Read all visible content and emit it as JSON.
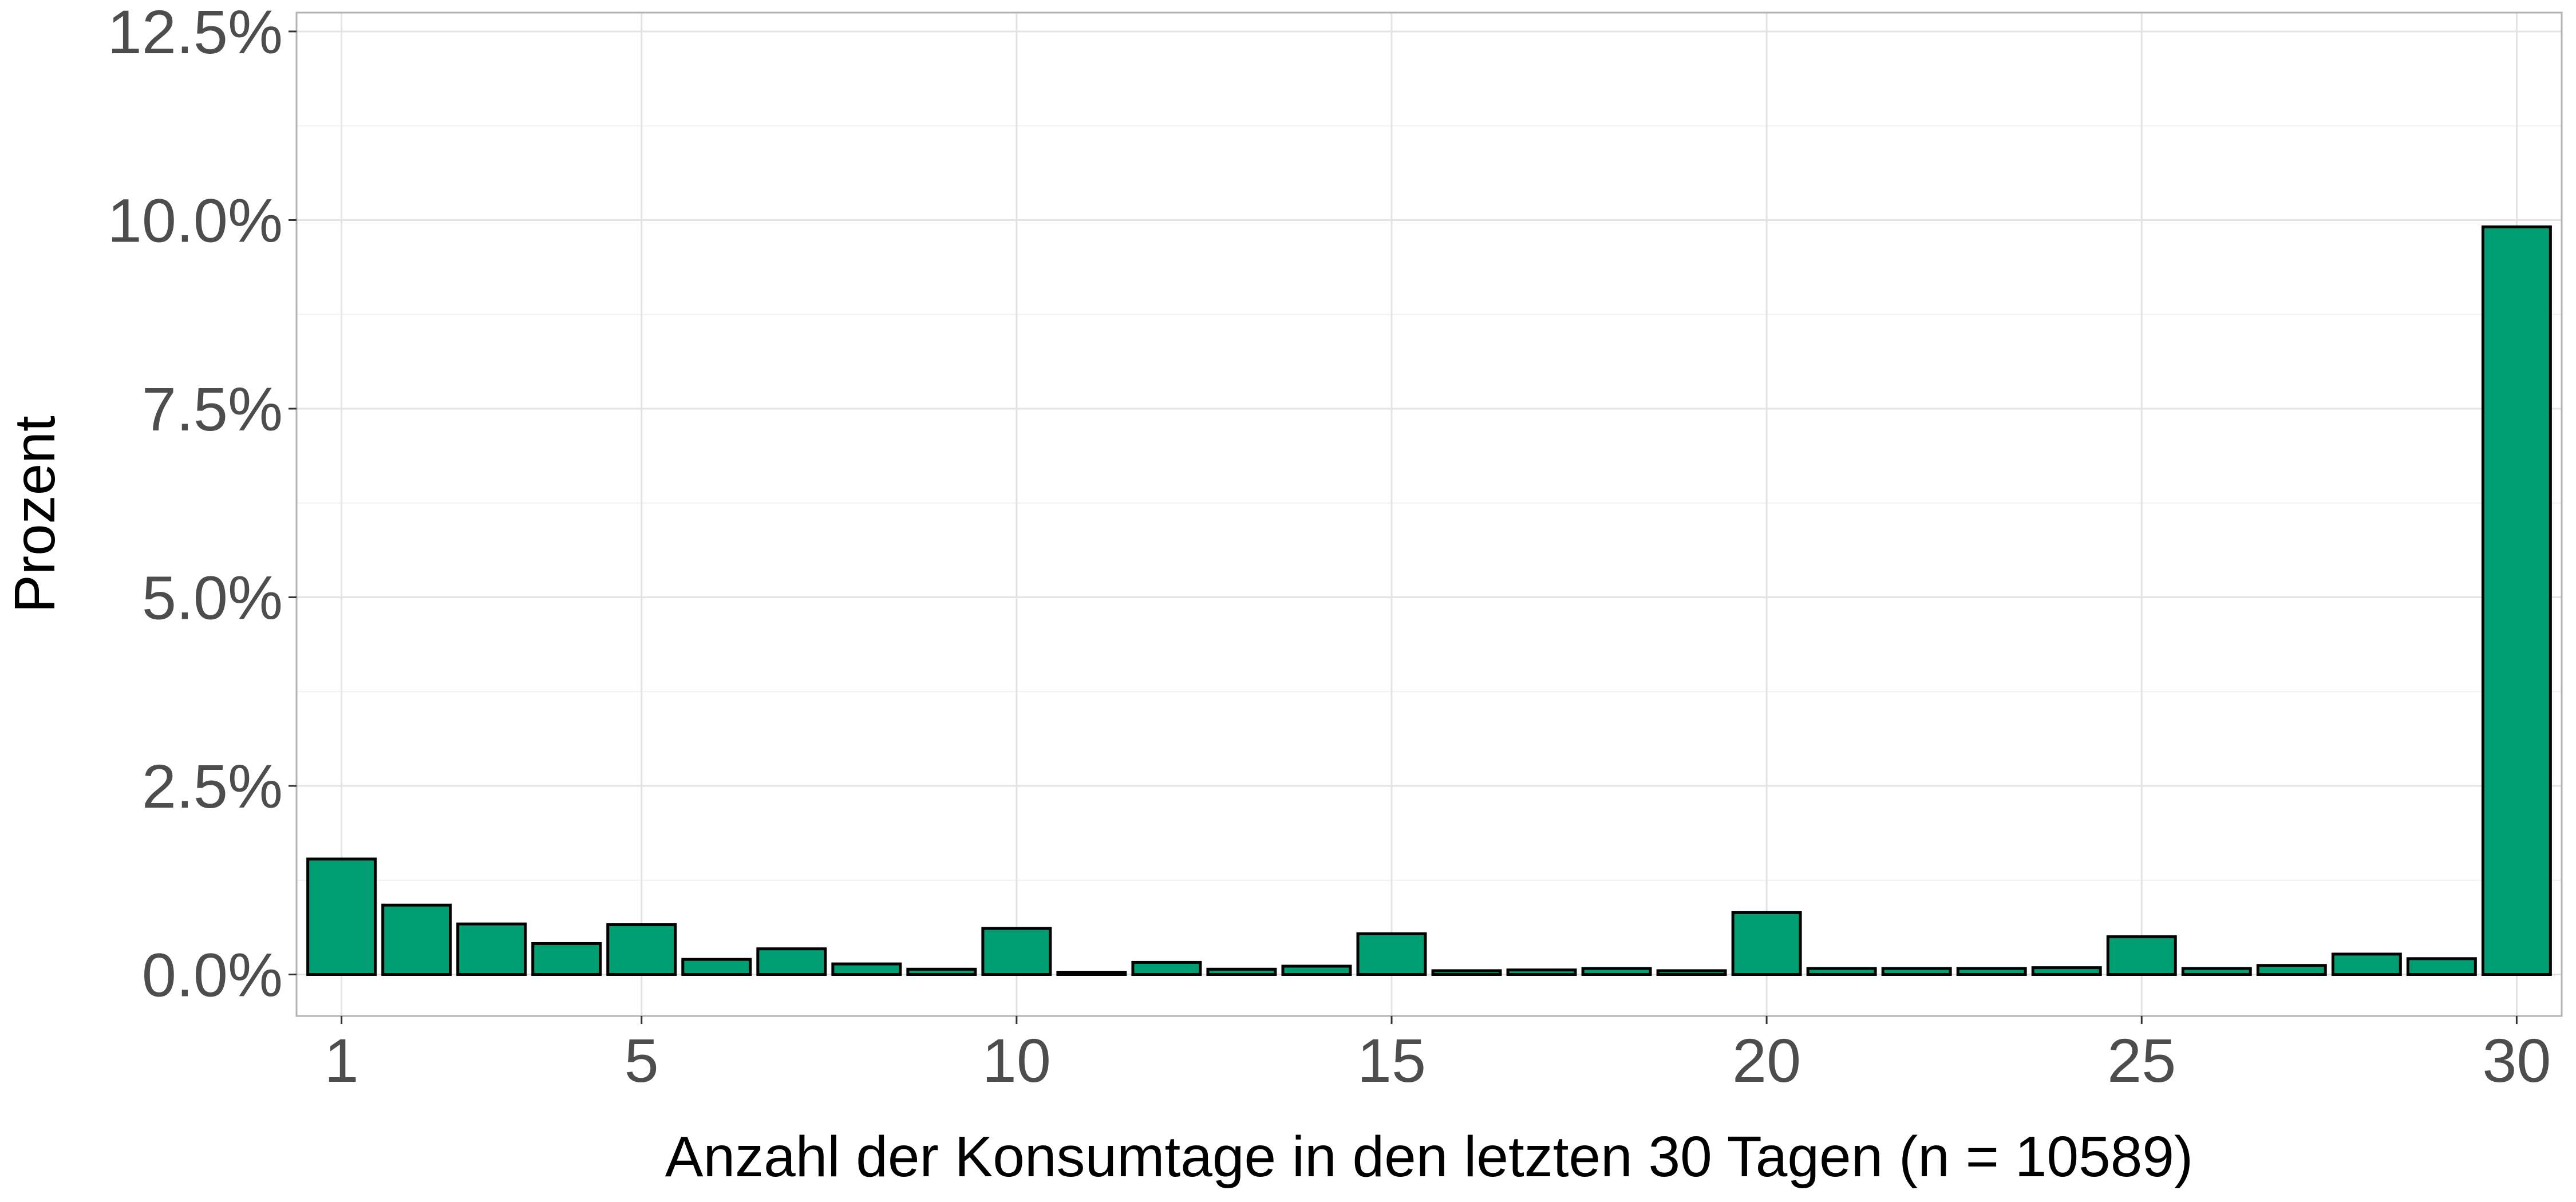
{
  "chart_data": {
    "type": "bar",
    "x": [
      1,
      2,
      3,
      4,
      5,
      6,
      7,
      8,
      9,
      10,
      11,
      12,
      13,
      14,
      15,
      16,
      17,
      18,
      19,
      20,
      21,
      22,
      23,
      24,
      25,
      26,
      27,
      28,
      29,
      30
    ],
    "values": [
      1.53,
      0.92,
      0.67,
      0.41,
      0.66,
      0.2,
      0.34,
      0.14,
      0.07,
      0.61,
      0.03,
      0.16,
      0.07,
      0.11,
      0.54,
      0.05,
      0.06,
      0.08,
      0.05,
      0.82,
      0.08,
      0.08,
      0.08,
      0.09,
      0.5,
      0.08,
      0.12,
      0.27,
      0.21,
      9.91
    ],
    "xlabel": "Anzahl der Konsumtage in den letzten 30 Tagen (n = 10589)",
    "ylabel": "Prozent",
    "x_ticks": [
      1,
      5,
      10,
      15,
      20,
      25,
      30
    ],
    "x_tick_labels": [
      "1",
      "5",
      "10",
      "15",
      "20",
      "25",
      "30"
    ],
    "y_ticks": [
      0,
      2.5,
      5,
      7.5,
      10,
      12.5
    ],
    "y_tick_labels": [
      "0.0%",
      "2.5%",
      "5.0%",
      "7.5%",
      "10.0%",
      "12.5%"
    ],
    "ylim": [
      -0.55,
      12.75
    ],
    "xlim": [
      0.4,
      30.6
    ],
    "grid": true,
    "bar_color": "#009E73",
    "bar_outline_color": "#000000"
  }
}
